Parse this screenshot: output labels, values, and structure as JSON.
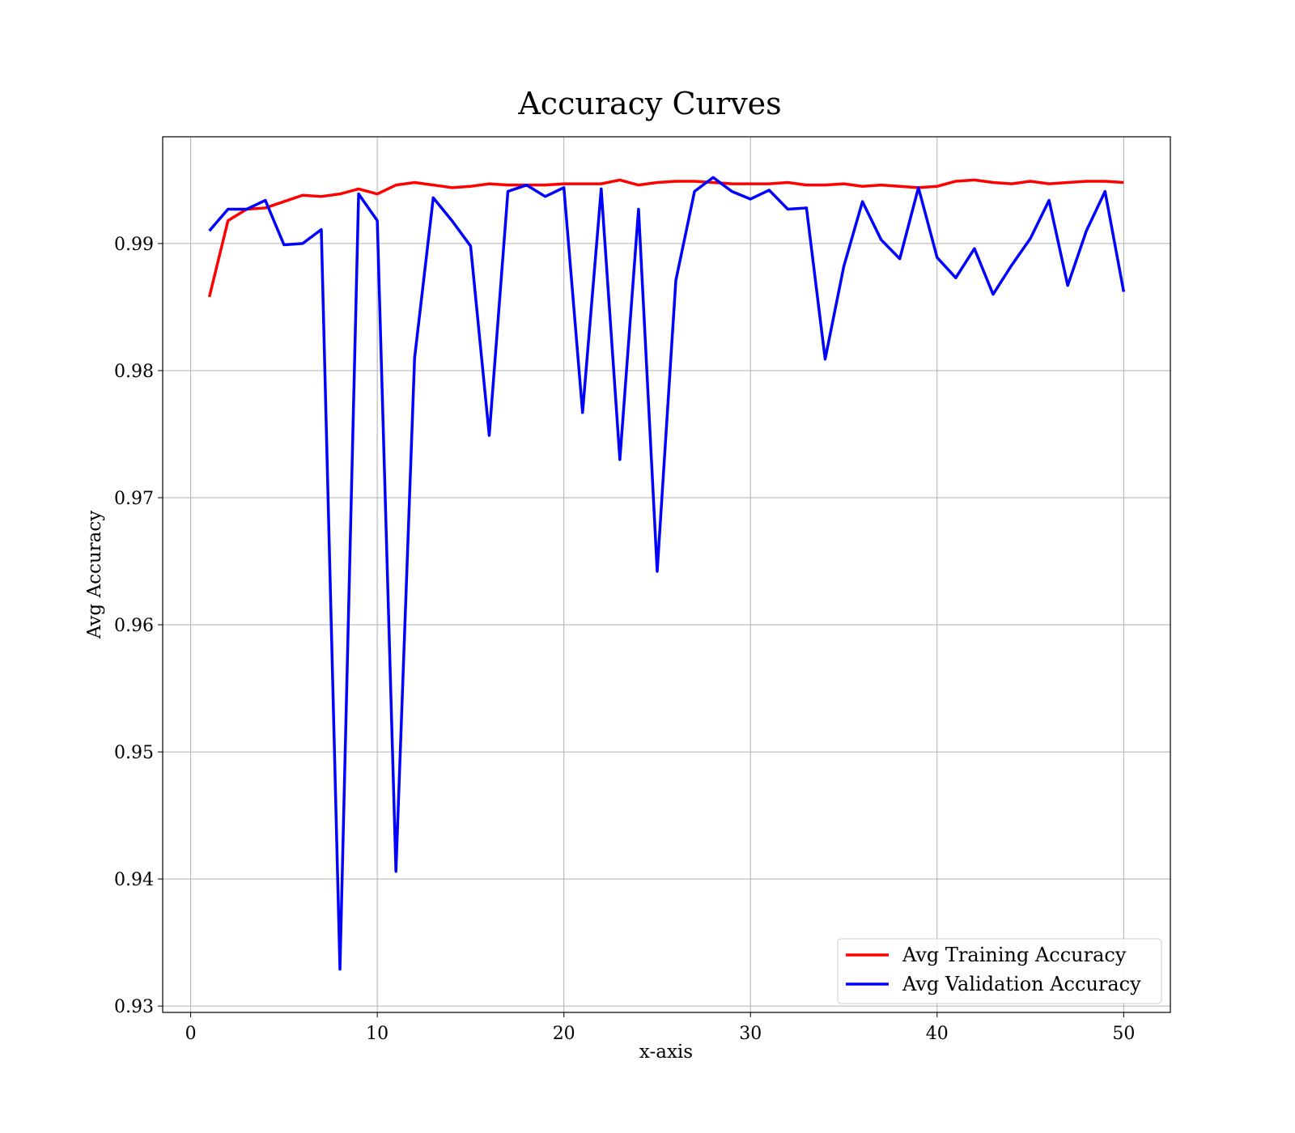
{
  "chart_data": {
    "type": "line",
    "title": "Accuracy Curves",
    "xlabel": "x-axis",
    "ylabel": "Avg Accuracy",
    "xlim": [
      -1.5,
      52.5
    ],
    "ylim": [
      0.9295,
      0.9984
    ],
    "xticks": [
      0,
      10,
      20,
      30,
      40,
      50
    ],
    "yticks": [
      0.93,
      0.94,
      0.95,
      0.96,
      0.97,
      0.98,
      0.99
    ],
    "xtick_labels": [
      "0",
      "10",
      "20",
      "30",
      "40",
      "50"
    ],
    "ytick_labels": [
      "0.93",
      "0.94",
      "0.95",
      "0.96",
      "0.97",
      "0.98",
      "0.99"
    ],
    "grid": true,
    "legend_position": "bottom-right",
    "x": [
      1,
      2,
      3,
      4,
      5,
      6,
      7,
      8,
      9,
      10,
      11,
      12,
      13,
      14,
      15,
      16,
      17,
      18,
      19,
      20,
      21,
      22,
      23,
      24,
      25,
      26,
      27,
      28,
      29,
      30,
      31,
      32,
      33,
      34,
      35,
      36,
      37,
      38,
      39,
      40,
      41,
      42,
      43,
      44,
      45,
      46,
      47,
      48,
      49,
      50
    ],
    "series": [
      {
        "name": "Avg Training Accuracy",
        "color": "#ff0000",
        "values": [
          0.9858,
          0.9918,
          0.9927,
          0.9928,
          0.9933,
          0.9938,
          0.9937,
          0.9939,
          0.9943,
          0.9939,
          0.9946,
          0.9948,
          0.9946,
          0.9944,
          0.9945,
          0.9947,
          0.9946,
          0.9946,
          0.9946,
          0.9947,
          0.9947,
          0.9947,
          0.995,
          0.9946,
          0.9948,
          0.9949,
          0.9949,
          0.9948,
          0.9947,
          0.9947,
          0.9947,
          0.9948,
          0.9946,
          0.9946,
          0.9947,
          0.9945,
          0.9946,
          0.9945,
          0.9944,
          0.9945,
          0.9949,
          0.995,
          0.9948,
          0.9947,
          0.9949,
          0.9947,
          0.9948,
          0.9949,
          0.9949,
          0.9948
        ]
      },
      {
        "name": "Avg Validation Accuracy",
        "color": "#0000ff",
        "values": [
          0.991,
          0.9927,
          0.9927,
          0.9934,
          0.9899,
          0.99,
          0.9911,
          0.9329,
          0.9939,
          0.9918,
          0.9406,
          0.981,
          0.9936,
          0.9918,
          0.9898,
          0.9749,
          0.9941,
          0.9946,
          0.9937,
          0.9944,
          0.9767,
          0.9943,
          0.973,
          0.9927,
          0.9642,
          0.9871,
          0.9941,
          0.9952,
          0.9941,
          0.9935,
          0.9942,
          0.9927,
          0.9928,
          0.9809,
          0.9882,
          0.9933,
          0.9903,
          0.9888,
          0.9944,
          0.9889,
          0.9873,
          0.9896,
          0.986,
          0.9883,
          0.9904,
          0.9934,
          0.9867,
          0.991,
          0.9941,
          0.9862
        ]
      }
    ]
  }
}
